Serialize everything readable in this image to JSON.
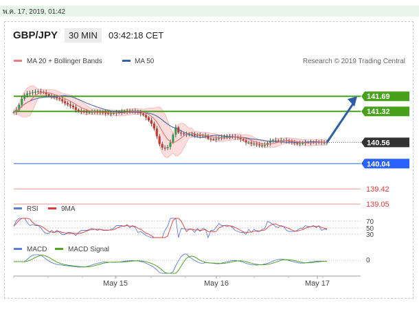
{
  "topbar": {
    "text": "พ.ค. 17, 2019, 01:42"
  },
  "header": {
    "symbol": "GBP/JPY",
    "timeframe": "30 MIN",
    "time": "03:42:18 CET"
  },
  "chart_data": {
    "type": "line",
    "legend": [
      {
        "name": "MA 20 + Bollinger Bands",
        "color": "#e87c7c"
      },
      {
        "name": "MA 50",
        "color": "#3b5fa8"
      }
    ],
    "credit": "Research © 2019 Trading Central",
    "ylim": [
      138.9,
      142.3
    ],
    "price_close": [
      141.3,
      141.36,
      141.48,
      141.63,
      141.72,
      141.76,
      141.77,
      141.79,
      141.8,
      141.81,
      141.8,
      141.78,
      141.74,
      141.7,
      141.69,
      141.66,
      141.65,
      141.62,
      141.57,
      141.52,
      141.49,
      141.46,
      141.42,
      141.36,
      141.33,
      141.32,
      141.31,
      141.3,
      141.3,
      141.31,
      141.31,
      141.3,
      141.3,
      141.29,
      141.28,
      141.27,
      141.27,
      141.28,
      141.29,
      141.3,
      141.31,
      141.31,
      141.33,
      141.32,
      141.33,
      141.32,
      141.29,
      141.27,
      141.23,
      141.17,
      141.1,
      141.02,
      140.9,
      140.71,
      140.52,
      140.43,
      140.42,
      140.45,
      140.56,
      140.75,
      140.93,
      140.8,
      140.78,
      140.76,
      140.76,
      140.76,
      140.76,
      140.73,
      140.74,
      140.72,
      140.73,
      140.73,
      140.65,
      140.64,
      140.63,
      140.65,
      140.68,
      140.69,
      140.7,
      140.7,
      140.71,
      140.7,
      140.69,
      140.67,
      140.64,
      140.61,
      140.56,
      140.56,
      140.53,
      140.53,
      140.51,
      140.49,
      140.49,
      140.5,
      140.55,
      140.59,
      140.61,
      140.61,
      140.6,
      140.61,
      140.61,
      140.6,
      140.58,
      140.56,
      140.54,
      140.53,
      140.54,
      140.55,
      140.56,
      140.56,
      140.56,
      140.57,
      140.56,
      140.57,
      140.56,
      140.56,
      140.56
    ],
    "levels": [
      {
        "label": "141.69",
        "value": 141.69,
        "color": "#48a11a",
        "kind": "resistance"
      },
      {
        "label": "141.32",
        "value": 141.32,
        "color": "#48a11a",
        "kind": "resistance"
      },
      {
        "label": "140.56",
        "value": 140.56,
        "color": "#333333",
        "kind": "last"
      },
      {
        "label": "140.04",
        "value": 140.04,
        "color": "#2962ff",
        "kind": "pivot"
      },
      {
        "label": "139.42",
        "value": 139.42,
        "color": "#e23838",
        "kind": "support"
      },
      {
        "label": "139.05",
        "value": 139.05,
        "color": "#e23838",
        "kind": "support"
      }
    ],
    "rsi": {
      "legend": [
        "RSI",
        "9MA"
      ],
      "levels": [
        "70",
        "50",
        "30"
      ]
    },
    "macd": {
      "legend": [
        "MACD",
        "MACD Signal"
      ],
      "zero_label": "0"
    },
    "x_labels": [
      "May 15",
      "May 16",
      "May 17"
    ]
  }
}
